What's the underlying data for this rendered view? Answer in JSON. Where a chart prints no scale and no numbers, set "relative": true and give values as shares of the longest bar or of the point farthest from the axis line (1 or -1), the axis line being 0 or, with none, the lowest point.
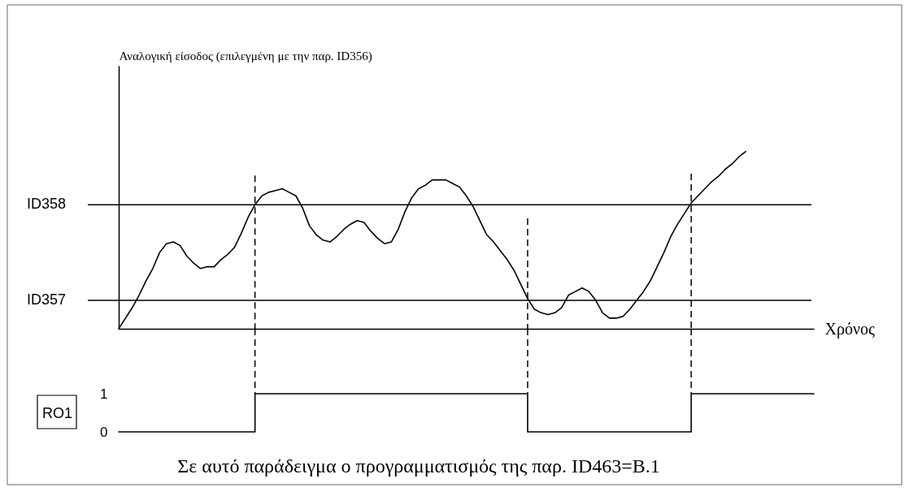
{
  "chart_data": [
    {
      "type": "line",
      "relative": true,
      "tick_labels": false,
      "ylabel": "Αναλογική είσοδος (επιλεγμένη με την παρ. ID356)",
      "xlabel": "Χρόνος",
      "categories": [
        null,
        null,
        null,
        null,
        null,
        null,
        null,
        null,
        null,
        null,
        null,
        null,
        null,
        null,
        null,
        null,
        null,
        null,
        null,
        null,
        null,
        null,
        null,
        null,
        null,
        null,
        null,
        null,
        null,
        null,
        null,
        null,
        null,
        null,
        null,
        null,
        null,
        null,
        null,
        null,
        null,
        null,
        null,
        null,
        null,
        null,
        null,
        null,
        null,
        null,
        null,
        null,
        null,
        null,
        null,
        null,
        null,
        null,
        null,
        null,
        null,
        null,
        null,
        null,
        null,
        null,
        null,
        null,
        null,
        null,
        null,
        null,
        null,
        null,
        null,
        null,
        null,
        null,
        null,
        null,
        null,
        null,
        null,
        null,
        null,
        null,
        null,
        null,
        null,
        null,
        null,
        null,
        null
      ],
      "series": [
        {
          "color": "#000000",
          "values": [
            0.0,
            0.06,
            0.12,
            0.19,
            0.27,
            0.34,
            0.43,
            0.48,
            0.49,
            0.47,
            0.41,
            0.37,
            0.34,
            0.35,
            0.35,
            0.39,
            0.42,
            0.46,
            0.54,
            0.63,
            0.7,
            0.75,
            0.77,
            0.78,
            0.79,
            0.77,
            0.75,
            0.68,
            0.58,
            0.53,
            0.5,
            0.49,
            0.52,
            0.56,
            0.59,
            0.61,
            0.6,
            0.55,
            0.51,
            0.48,
            0.49,
            0.56,
            0.66,
            0.74,
            0.79,
            0.81,
            0.84,
            0.84,
            0.84,
            0.82,
            0.8,
            0.75,
            0.69,
            0.61,
            0.53,
            0.49,
            0.44,
            0.39,
            0.33,
            0.25,
            0.17,
            0.11,
            0.09,
            0.08,
            0.09,
            0.12,
            0.19,
            0.21,
            0.23,
            0.21,
            0.16,
            0.09,
            0.06,
            0.06,
            0.07,
            0.11,
            0.16,
            0.21,
            0.27,
            0.35,
            0.43,
            0.52,
            0.59,
            0.65,
            0.71,
            0.75,
            0.79,
            0.83,
            0.86,
            0.9,
            0.93,
            0.97,
            1.0
          ]
        }
      ],
      "ref_lines": [
        {
          "axis": "y",
          "value": 0.7,
          "label": "ID358"
        },
        {
          "axis": "y",
          "value": 0.16,
          "label": "ID357"
        }
      ]
    },
    {
      "type": "step",
      "tick_labels": "y",
      "ylabel": "RO1",
      "ylim": [
        0,
        1
      ],
      "yticks": [
        0,
        1
      ],
      "categories": [
        null,
        null,
        null,
        null,
        null,
        null,
        null,
        null,
        null,
        null,
        null,
        null,
        null,
        null,
        null,
        null,
        null,
        null,
        null,
        null,
        null,
        null,
        null,
        null,
        null,
        null,
        null,
        null,
        null,
        null,
        null,
        null,
        null,
        null,
        null,
        null,
        null,
        null,
        null,
        null,
        null,
        null,
        null,
        null,
        null,
        null,
        null,
        null,
        null,
        null,
        null,
        null,
        null,
        null,
        null,
        null,
        null,
        null,
        null,
        null,
        null,
        null,
        null,
        null,
        null,
        null,
        null,
        null,
        null,
        null,
        null,
        null,
        null,
        null,
        null,
        null,
        null,
        null,
        null,
        null,
        null,
        null,
        null,
        null,
        null,
        null,
        null,
        null,
        null,
        null,
        null,
        null,
        null,
        null,
        null,
        null,
        null,
        null,
        null,
        null,
        null,
        null,
        null
      ],
      "series": [
        {
          "color": "#000000",
          "values": [
            0,
            0,
            0,
            0,
            0,
            0,
            0,
            0,
            0,
            0,
            0,
            0,
            0,
            0,
            0,
            0,
            0,
            0,
            0,
            0,
            1,
            1,
            1,
            1,
            1,
            1,
            1,
            1,
            1,
            1,
            1,
            1,
            1,
            1,
            1,
            1,
            1,
            1,
            1,
            1,
            1,
            1,
            1,
            1,
            1,
            1,
            1,
            1,
            1,
            1,
            1,
            1,
            1,
            1,
            1,
            1,
            1,
            1,
            1,
            1,
            0,
            0,
            0,
            0,
            0,
            0,
            0,
            0,
            0,
            0,
            0,
            0,
            0,
            0,
            0,
            0,
            0,
            0,
            0,
            0,
            0,
            0,
            0,
            0,
            1,
            1,
            1,
            1,
            1,
            1,
            1,
            1,
            1,
            1,
            1,
            1,
            1,
            1,
            1,
            1,
            1,
            1,
            1
          ]
        }
      ],
      "annotations": [
        "Σε αυτό παράδειγμα ο προγραμματισμός της παρ. ID463=B.1"
      ]
    }
  ]
}
